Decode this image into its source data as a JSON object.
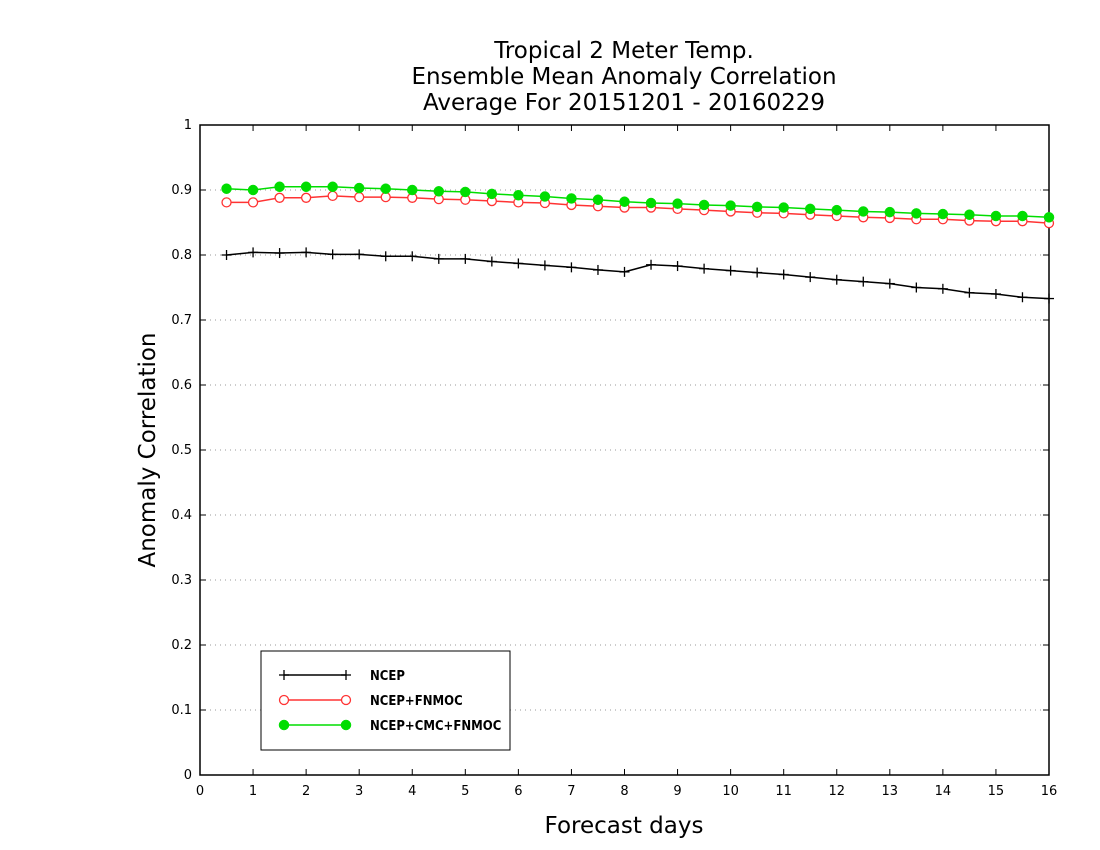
{
  "chart_data": {
    "type": "line",
    "title_lines": [
      "Tropical 2 Meter Temp.",
      "Ensemble Mean Anomaly Correlation",
      "Average For 20151201 - 20160229"
    ],
    "xlabel": "Forecast days",
    "ylabel": "Anomaly Correlation",
    "xlim": [
      0,
      16
    ],
    "ylim": [
      0,
      1
    ],
    "x_ticks": [
      "0",
      "1",
      "2",
      "3",
      "4",
      "5",
      "6",
      "7",
      "8",
      "9",
      "10",
      "11",
      "12",
      "13",
      "14",
      "15",
      "16"
    ],
    "y_ticks": [
      "0",
      "0.1",
      "0.2",
      "0.3",
      "0.4",
      "0.5",
      "0.6",
      "0.7",
      "0.8",
      "0.9",
      "1"
    ],
    "grid": "horizontal dotted",
    "legend_position": "bottom-left",
    "x": [
      0.5,
      1,
      1.5,
      2,
      2.5,
      3,
      3.5,
      4,
      4.5,
      5,
      5.5,
      6,
      6.5,
      7,
      7.5,
      8,
      8.5,
      9,
      9.5,
      10,
      10.5,
      11,
      11.5,
      12,
      12.5,
      13,
      13.5,
      14,
      14.5,
      15,
      15.5,
      16
    ],
    "series": [
      {
        "name": "NCEP",
        "color": "#000000",
        "marker": "plus",
        "values": [
          0.8,
          0.804,
          0.803,
          0.804,
          0.801,
          0.801,
          0.798,
          0.798,
          0.794,
          0.794,
          0.79,
          0.787,
          0.784,
          0.781,
          0.777,
          0.774,
          0.785,
          0.783,
          0.779,
          0.776,
          0.773,
          0.77,
          0.766,
          0.762,
          0.759,
          0.756,
          0.75,
          0.748,
          0.742,
          0.74,
          0.735,
          0.733
        ]
      },
      {
        "name": "NCEP+FNMOC",
        "color": "#ff3333",
        "marker": "open-circle",
        "values": [
          0.881,
          0.881,
          0.888,
          0.888,
          0.891,
          0.889,
          0.889,
          0.888,
          0.886,
          0.885,
          0.883,
          0.881,
          0.88,
          0.877,
          0.875,
          0.873,
          0.873,
          0.871,
          0.869,
          0.867,
          0.865,
          0.864,
          0.862,
          0.86,
          0.858,
          0.857,
          0.855,
          0.855,
          0.853,
          0.852,
          0.852,
          0.849
        ]
      },
      {
        "name": "NCEP+CMC+FNMOC",
        "color": "#00dd00",
        "marker": "filled-circle",
        "values": [
          0.902,
          0.9,
          0.905,
          0.905,
          0.905,
          0.903,
          0.902,
          0.9,
          0.898,
          0.897,
          0.894,
          0.892,
          0.89,
          0.887,
          0.885,
          0.882,
          0.88,
          0.879,
          0.877,
          0.876,
          0.874,
          0.873,
          0.871,
          0.869,
          0.867,
          0.866,
          0.864,
          0.863,
          0.862,
          0.86,
          0.86,
          0.858
        ]
      }
    ]
  }
}
